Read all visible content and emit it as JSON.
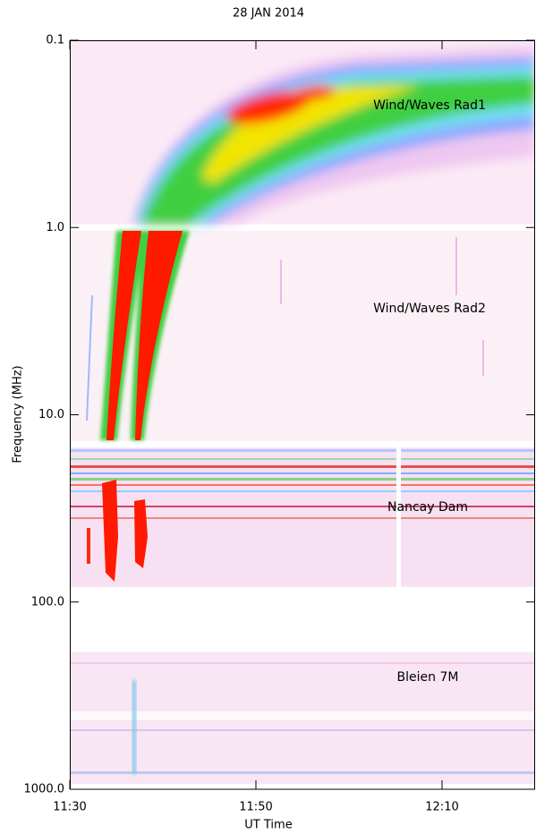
{
  "chart_data": {
    "type": "spectrogram",
    "title": "28 JAN 2014",
    "x_label": "UT Time",
    "y_label": "Frequency (MHz)",
    "y_scale": "log",
    "y_inverted": true,
    "xlim": [
      "11:30",
      "12:20"
    ],
    "xticks": [
      "11:30",
      "11:50",
      "12:10"
    ],
    "ylim": [
      0.1,
      1000
    ],
    "yticks": [
      0.1,
      {
        "value": 1,
        "label": "1.0"
      },
      {
        "value": 10,
        "label": "10.0"
      },
      {
        "value": 100,
        "label": "100.0"
      },
      {
        "value": 1000,
        "label": "1000.0"
      }
    ],
    "bands": [
      {
        "name": "Wind/Waves Rad1",
        "flim": [
          0.1,
          0.96
        ],
        "color": "#fbeaf6"
      },
      {
        "name": "Wind/Waves Rad2",
        "flim": [
          1.04,
          13.8
        ],
        "color": "#fcf0f7"
      },
      {
        "name": "Nancay Dam",
        "flim": [
          15,
          83
        ],
        "color": "#f6e0f2"
      },
      {
        "name": "Bleien 7M",
        "flim": [
          185,
          937
        ],
        "color": "#f8e6f4"
      }
    ]
  }
}
